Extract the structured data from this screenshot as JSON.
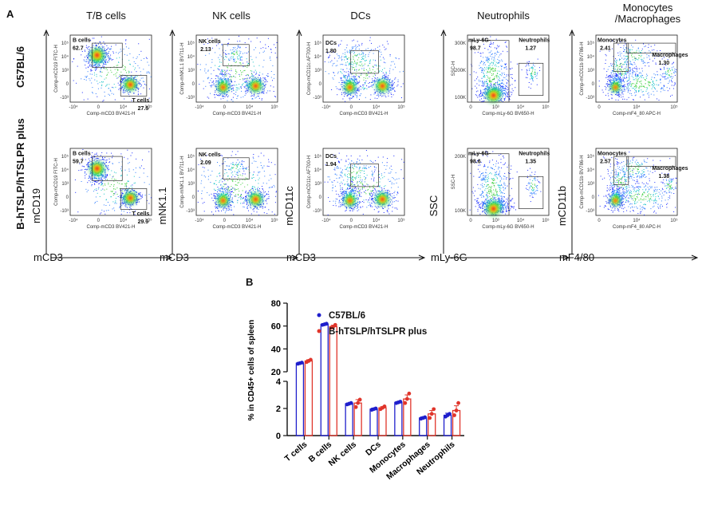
{
  "panel_a": {
    "letter": "A",
    "row_labels": [
      "C57BL/6",
      "B-hTSLP/hTSLPR plus"
    ],
    "columns": [
      {
        "title": "T/B cells",
        "y_marker": "mCD19",
        "x_marker": "mCD3",
        "x_axis_label": "Comp-mCD3 BV421-H",
        "y_axis_label": "Comp-mCD19 FITC-H",
        "x_ticks": [
          "-10⁴",
          "0",
          "10⁴",
          "10⁵"
        ],
        "y_ticks": [
          "10⁵",
          "10⁴",
          "10³",
          "0",
          "-10³"
        ],
        "gates": [
          {
            "label": "B cells",
            "values": [
              "62.7",
              "59.7"
            ]
          },
          {
            "label": "T cells",
            "values": [
              "27.5",
              "29.9"
            ]
          }
        ]
      },
      {
        "title": "NK cells",
        "y_marker": "mNK1.1",
        "x_marker": "mCD3",
        "x_axis_label": "Comp-mCD3 BV421-H",
        "y_axis_label": "Comp-mNK1.1 BV711-H",
        "x_ticks": [
          "-10⁴",
          "0",
          "10⁴",
          "10⁵"
        ],
        "y_ticks": [
          "10⁵",
          "10⁴",
          "10³",
          "0",
          "-10³"
        ],
        "gates": [
          {
            "label": "NK cells",
            "values": [
              "2.13",
              "2.09"
            ]
          }
        ]
      },
      {
        "title": "DCs",
        "y_marker": "mCD11c",
        "x_marker": "mCD3",
        "x_axis_label": "Comp-mCD3 BV421-H",
        "y_axis_label": "Comp-mCD11c AF700-H",
        "x_ticks": [
          "-10⁴",
          "0",
          "10⁴",
          "10⁵"
        ],
        "y_ticks": [
          "10⁵",
          "10⁴",
          "10³",
          "0",
          "-10³"
        ],
        "gates": [
          {
            "label": "DCs",
            "values": [
              "1.80",
              "1.94"
            ]
          }
        ]
      },
      {
        "title": "Neutrophils",
        "y_marker": "SSC",
        "x_marker": "mLy-6G",
        "x_axis_label": "Comp-mLy-6G BV650-H",
        "y_axis_label": "SSC-H",
        "x_ticks": [
          "0",
          "10³",
          "10⁴",
          "10⁵"
        ],
        "y_ticks": [
          "200K",
          "100K"
        ],
        "y_ticks_top": [
          "300K",
          "200K",
          "100K"
        ],
        "gates": [
          {
            "label": "mLy-6G-",
            "values": [
              "98.7",
              "98.6"
            ]
          },
          {
            "label": "Neutrophils",
            "values": [
              "1.27",
              "1.35"
            ]
          }
        ]
      },
      {
        "title": "Monocytes\n/Macrophages",
        "y_marker": "mCD11b",
        "x_marker": "mF4/80",
        "x_axis_label": "Comp-mF4_80 APC-H",
        "y_axis_label": "Comp-mCD11b BV786-H",
        "x_ticks": [
          "0",
          "10⁴",
          "10⁵"
        ],
        "y_ticks": [
          "10⁵",
          "10⁴",
          "10³",
          "0",
          "-10³"
        ],
        "gates": [
          {
            "label": "Monocytes",
            "values": [
              "2.41",
              "2.57"
            ]
          },
          {
            "label": "Macrophages",
            "values": [
              "1.30",
              "1.38"
            ]
          }
        ]
      }
    ]
  },
  "panel_b": {
    "letter": "B"
  },
  "chart_data": {
    "type": "bar",
    "title": "",
    "xlabel": "",
    "ylabel": "% in CD45+ cells of spleen",
    "categories": [
      "T cells",
      "B cells",
      "NK cells",
      "DCs",
      "Monocytes",
      "Macrophages",
      "Neutrophils"
    ],
    "axis_break": {
      "lower_range": [
        0,
        4
      ],
      "upper_range": [
        20,
        80
      ]
    },
    "y_ticks_lower": [
      0,
      2,
      4
    ],
    "y_ticks_upper": [
      20,
      40,
      60,
      80
    ],
    "legend_position": "top-right",
    "series": [
      {
        "name": "C57BL/6",
        "color": "#1f1fcc",
        "values": [
          27.5,
          61.5,
          2.35,
          1.95,
          2.45,
          1.3,
          1.5
        ],
        "errors": [
          0.8,
          0.6,
          0.05,
          0.08,
          0.05,
          0.08,
          0.15
        ],
        "points": [
          [
            27,
            27.5,
            28
          ],
          [
            61,
            61.5,
            62
          ],
          [
            2.3,
            2.35,
            2.4
          ],
          [
            1.9,
            1.95,
            2.0
          ],
          [
            2.4,
            2.45,
            2.5
          ],
          [
            1.25,
            1.3,
            1.35
          ],
          [
            1.4,
            1.5,
            1.6
          ]
        ]
      },
      {
        "name": "B-hTSLP/hTSLPR plus",
        "color": "#e0352b",
        "values": [
          29.5,
          59.5,
          2.4,
          2.05,
          2.7,
          1.6,
          1.85
        ],
        "errors": [
          1.0,
          1.2,
          0.25,
          0.08,
          0.3,
          0.25,
          0.35
        ],
        "points": [
          [
            28.5,
            29.5,
            30.5
          ],
          [
            58.5,
            59.5,
            61
          ],
          [
            2.1,
            2.4,
            2.65
          ],
          [
            1.95,
            2.05,
            2.15
          ],
          [
            2.4,
            2.7,
            3.1
          ],
          [
            1.3,
            1.6,
            1.95
          ],
          [
            1.5,
            1.85,
            2.4
          ]
        ]
      }
    ]
  }
}
